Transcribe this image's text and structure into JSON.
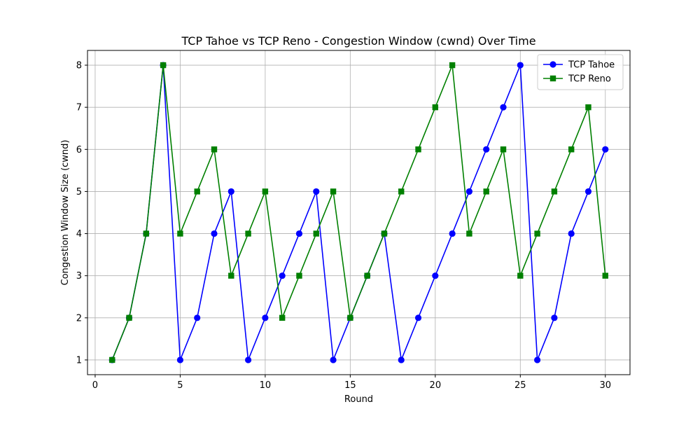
{
  "chart_data": {
    "type": "line",
    "title": "TCP Tahoe vs TCP Reno - Congestion Window (cwnd) Over Time",
    "xlabel": "Round",
    "ylabel": "Congestion Window Size (cwnd)",
    "xlim": [
      -0.45,
      31.45
    ],
    "ylim": [
      0.65,
      8.35
    ],
    "xticks": [
      0,
      5,
      10,
      15,
      20,
      25,
      30
    ],
    "yticks": [
      1,
      2,
      3,
      4,
      5,
      6,
      7,
      8
    ],
    "grid": true,
    "legend_position": "top-right",
    "x": [
      1,
      2,
      3,
      4,
      5,
      6,
      7,
      8,
      9,
      10,
      11,
      12,
      13,
      14,
      15,
      16,
      17,
      18,
      19,
      20,
      21,
      22,
      23,
      24,
      25,
      26,
      27,
      28,
      29,
      30
    ],
    "series": [
      {
        "name": "TCP Tahoe",
        "marker": "circle",
        "color": "#0000ff",
        "values": [
          1,
          2,
          4,
          8,
          1,
          2,
          4,
          5,
          1,
          2,
          3,
          4,
          5,
          1,
          2,
          3,
          4,
          1,
          2,
          3,
          4,
          5,
          6,
          7,
          8,
          1,
          2,
          4,
          5,
          6
        ]
      },
      {
        "name": "TCP Reno",
        "marker": "square",
        "color": "#008000",
        "values": [
          1,
          2,
          4,
          8,
          4,
          5,
          6,
          3,
          4,
          5,
          2,
          3,
          4,
          5,
          2,
          3,
          4,
          5,
          6,
          7,
          8,
          4,
          5,
          6,
          3,
          4,
          5,
          6,
          7,
          3
        ]
      }
    ]
  }
}
